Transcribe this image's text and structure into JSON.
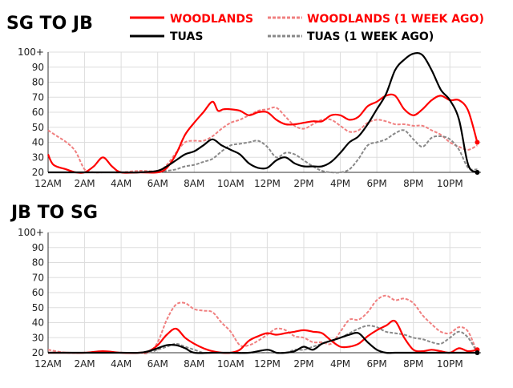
{
  "legend": {
    "items": [
      {
        "key": "woodlands",
        "label": "WOODLANDS",
        "color": "#ff0000",
        "dashed": false
      },
      {
        "key": "woodlands_prev",
        "label": "WOODLANDS (1 WEEK AGO)",
        "color": "#f08080",
        "dashed": true
      },
      {
        "key": "tuas",
        "label": "TUAS",
        "color": "#000000",
        "dashed": false
      },
      {
        "key": "tuas_prev",
        "label": "TUAS (1 WEEK AGO)",
        "color": "#888888",
        "dashed": true
      }
    ]
  },
  "chart_data": [
    {
      "type": "line",
      "title": "SG TO JB",
      "x_unit": "hour",
      "x_range": [
        0,
        23.7
      ],
      "ylim": [
        20,
        100
      ],
      "yticks": [
        "20",
        "30",
        "40",
        "50",
        "60",
        "70",
        "80",
        "90",
        "100+"
      ],
      "xticks": [
        {
          "x": 0,
          "label": "12AM"
        },
        {
          "x": 2,
          "label": "2AM"
        },
        {
          "x": 4,
          "label": "4AM"
        },
        {
          "x": 6,
          "label": "6AM"
        },
        {
          "x": 8,
          "label": "8AM"
        },
        {
          "x": 10,
          "label": "10AM"
        },
        {
          "x": 12,
          "label": "12PM"
        },
        {
          "x": 14,
          "label": "2PM"
        },
        {
          "x": 16,
          "label": "4PM"
        },
        {
          "x": 18,
          "label": "6PM"
        },
        {
          "x": 20,
          "label": "8PM"
        },
        {
          "x": 22,
          "label": "10PM"
        }
      ],
      "grid": true,
      "series": [
        {
          "key": "woodlands_prev",
          "name": "WOODLANDS (1 WEEK AGO)",
          "x": [
            0,
            0.5,
            1,
            1.5,
            2,
            2.5,
            3,
            3.5,
            4,
            5,
            6,
            6.5,
            7,
            7.5,
            8,
            8.5,
            9,
            9.5,
            10,
            10.5,
            11,
            11.5,
            12,
            12.5,
            13,
            13.5,
            14,
            14.5,
            15,
            15.5,
            16,
            16.5,
            17,
            17.5,
            18,
            18.5,
            19,
            19.5,
            20,
            20.5,
            21,
            21.5,
            22,
            22.5,
            23,
            23.5
          ],
          "y": [
            48,
            44,
            40,
            34,
            22,
            20,
            20,
            20,
            20,
            21,
            21,
            25,
            33,
            40,
            41,
            41,
            44,
            49,
            53,
            55,
            58,
            61,
            62,
            63,
            57,
            51,
            49,
            52,
            55,
            55,
            51,
            47,
            48,
            53,
            55,
            54,
            52,
            52,
            51,
            51,
            48,
            45,
            40,
            37,
            35,
            38
          ]
        },
        {
          "key": "tuas_prev",
          "name": "TUAS (1 WEEK AGO)",
          "x": [
            0,
            1,
            2,
            3,
            4,
            5,
            6,
            6.5,
            7,
            7.5,
            8,
            8.5,
            9,
            9.5,
            10,
            10.5,
            11,
            11.5,
            12,
            12.5,
            13,
            13.5,
            14,
            14.5,
            15,
            15.5,
            16,
            16.5,
            17,
            17.5,
            18,
            18.5,
            19,
            19.5,
            20,
            20.5,
            21,
            21.5,
            22,
            22.5,
            23,
            23.5
          ],
          "y": [
            20,
            20,
            20,
            20,
            20,
            20,
            20,
            21,
            22,
            24,
            25,
            27,
            29,
            34,
            38,
            39,
            40,
            41,
            37,
            30,
            33,
            32,
            28,
            24,
            21,
            20,
            20,
            22,
            29,
            38,
            40,
            42,
            46,
            48,
            42,
            37,
            43,
            44,
            42,
            35,
            23,
            22
          ]
        },
        {
          "key": "woodlands",
          "name": "WOODLANDS",
          "x": [
            0,
            0.3,
            1,
            1.5,
            2,
            2.5,
            3,
            3.5,
            4,
            5,
            6,
            6.5,
            7,
            7.5,
            8,
            8.5,
            9,
            9.3,
            9.6,
            10,
            10.5,
            11,
            11.5,
            12,
            12.5,
            13,
            13.5,
            14,
            14.5,
            15,
            15.5,
            16,
            16.5,
            17,
            17.5,
            18,
            18.5,
            19,
            19.5,
            20,
            20.5,
            21,
            21.5,
            22,
            22.5,
            23,
            23.5
          ],
          "y": [
            32,
            25,
            22,
            20,
            20,
            24,
            30,
            24,
            20,
            20,
            20,
            23,
            32,
            45,
            53,
            60,
            67,
            61,
            62,
            62,
            61,
            58,
            60,
            60,
            55,
            52,
            52,
            53,
            54,
            54,
            58,
            58,
            55,
            57,
            64,
            67,
            71,
            71,
            62,
            58,
            62,
            68,
            71,
            68,
            68,
            61,
            40
          ]
        },
        {
          "key": "tuas",
          "name": "TUAS",
          "x": [
            0,
            1,
            2,
            3,
            4,
            5,
            6,
            6.5,
            7,
            7.5,
            8,
            8.5,
            9,
            9.5,
            10,
            10.5,
            11,
            11.5,
            12,
            12.5,
            13,
            13.5,
            14,
            14.5,
            15,
            15.5,
            16,
            16.5,
            17,
            17.5,
            18,
            18.5,
            19,
            19.5,
            20,
            20.5,
            21,
            21.5,
            22,
            22.5,
            23,
            23.5
          ],
          "y": [
            20,
            20,
            20,
            20,
            20,
            20,
            21,
            24,
            28,
            32,
            34,
            38,
            42,
            38,
            35,
            32,
            26,
            23,
            23,
            28,
            30,
            26,
            24,
            24,
            24,
            27,
            33,
            40,
            44,
            52,
            62,
            72,
            88,
            95,
            99,
            98,
            88,
            75,
            68,
            55,
            25,
            20
          ]
        }
      ]
    },
    {
      "type": "line",
      "title": "JB TO SG",
      "x_unit": "hour",
      "x_range": [
        0,
        23.7
      ],
      "ylim": [
        20,
        100
      ],
      "yticks": [
        "20",
        "30",
        "40",
        "50",
        "60",
        "70",
        "80",
        "90",
        "100+"
      ],
      "xticks": [
        {
          "x": 0,
          "label": "12AM"
        },
        {
          "x": 2,
          "label": "2AM"
        },
        {
          "x": 4,
          "label": "4AM"
        },
        {
          "x": 6,
          "label": "6AM"
        },
        {
          "x": 8,
          "label": "8AM"
        },
        {
          "x": 10,
          "label": "10AM"
        },
        {
          "x": 12,
          "label": "12PM"
        },
        {
          "x": 14,
          "label": "2PM"
        },
        {
          "x": 16,
          "label": "4PM"
        },
        {
          "x": 18,
          "label": "6PM"
        },
        {
          "x": 20,
          "label": "8PM"
        },
        {
          "x": 22,
          "label": "10PM"
        }
      ],
      "grid": true,
      "series": [
        {
          "key": "woodlands_prev",
          "name": "WOODLANDS (1 WEEK AGO)",
          "x": [
            0,
            1,
            2,
            3,
            4,
            5,
            5.5,
            6,
            6.5,
            7,
            7.5,
            8,
            8.5,
            9,
            9.5,
            10,
            10.5,
            11,
            11.5,
            12,
            12.5,
            13,
            13.5,
            14,
            14.5,
            15,
            15.5,
            16,
            16.5,
            17,
            17.5,
            18,
            18.5,
            19,
            19.5,
            20,
            20.5,
            21,
            21.5,
            22,
            22.5,
            23,
            23.5
          ],
          "y": [
            22,
            20,
            20,
            20,
            20,
            20,
            20,
            27,
            42,
            52,
            53,
            49,
            48,
            47,
            40,
            34,
            25,
            25,
            28,
            32,
            36,
            35,
            31,
            30,
            27,
            27,
            26,
            34,
            42,
            42,
            47,
            55,
            58,
            55,
            56,
            53,
            45,
            39,
            34,
            33,
            37,
            34,
            20
          ]
        },
        {
          "key": "tuas_prev",
          "name": "TUAS (1 WEEK AGO)",
          "x": [
            0,
            1,
            2,
            3,
            4,
            5,
            5.5,
            6,
            6.5,
            7,
            7.5,
            8,
            8.5,
            9,
            10,
            11,
            12,
            13,
            13.5,
            14,
            14.5,
            15,
            15.5,
            16,
            16.5,
            17,
            17.5,
            18,
            18.5,
            19,
            19.5,
            20,
            20.5,
            21,
            21.5,
            22,
            22.5,
            23,
            23.5
          ],
          "y": [
            20,
            20,
            20,
            20,
            20,
            20,
            20,
            22,
            24,
            26,
            24,
            22,
            20,
            20,
            20,
            20,
            20,
            20,
            22,
            22,
            24,
            26,
            28,
            30,
            33,
            36,
            38,
            37,
            34,
            33,
            32,
            30,
            29,
            27,
            26,
            30,
            34,
            30,
            20
          ]
        },
        {
          "key": "woodlands",
          "name": "WOODLANDS",
          "x": [
            0,
            1,
            2,
            3,
            4,
            5,
            5.5,
            6,
            6.5,
            7,
            7.5,
            8,
            8.5,
            9,
            9.5,
            10,
            10.5,
            11,
            11.5,
            12,
            12.5,
            13,
            13.5,
            14,
            14.5,
            15,
            15.5,
            16,
            16.5,
            17,
            17.5,
            18,
            18.5,
            19,
            19.5,
            20,
            20.5,
            21,
            21.5,
            22,
            22.5,
            23,
            23.5
          ],
          "y": [
            20,
            20,
            20,
            21,
            20,
            20,
            21,
            25,
            32,
            36,
            30,
            26,
            23,
            21,
            20,
            20,
            22,
            28,
            31,
            33,
            32,
            33,
            34,
            35,
            34,
            33,
            28,
            24,
            24,
            26,
            31,
            35,
            38,
            41,
            30,
            22,
            21,
            22,
            21,
            20,
            23,
            21,
            22
          ]
        },
        {
          "key": "tuas",
          "name": "TUAS",
          "x": [
            0,
            1,
            2,
            3,
            4,
            5,
            5.5,
            6,
            6.5,
            7,
            7.5,
            8,
            9,
            10,
            11,
            12,
            12.5,
            13,
            13.5,
            14,
            14.5,
            15,
            15.5,
            16,
            16.5,
            17,
            17.5,
            18,
            18.5,
            19,
            19.5,
            20,
            21,
            22,
            23,
            23.5
          ],
          "y": [
            20,
            20,
            20,
            20,
            20,
            20,
            21,
            23,
            25,
            25,
            23,
            20,
            20,
            20,
            20,
            22,
            20,
            20,
            21,
            24,
            22,
            26,
            28,
            30,
            32,
            33,
            27,
            22,
            20,
            20,
            20,
            20,
            20,
            20,
            20,
            20
          ]
        }
      ]
    }
  ]
}
